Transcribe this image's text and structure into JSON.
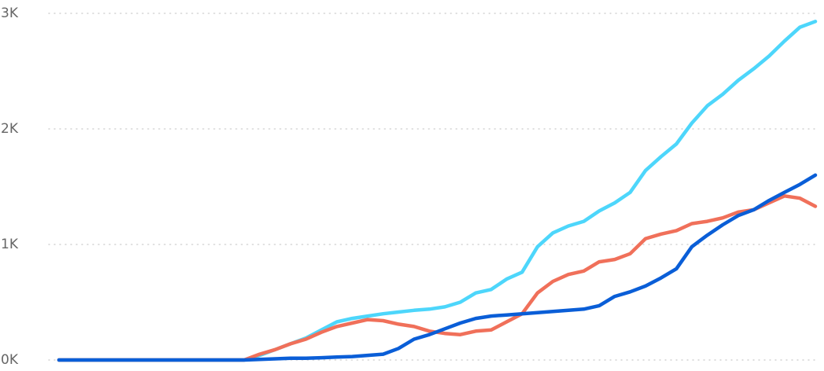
{
  "chart_data": {
    "type": "line",
    "categories": [
      null,
      null,
      null,
      null,
      null,
      null,
      null,
      null,
      null,
      null,
      null,
      null,
      null,
      null,
      null,
      null,
      null,
      null,
      null,
      null,
      null,
      null,
      null,
      null,
      null,
      null,
      null,
      null,
      null,
      null,
      null,
      null,
      null,
      null,
      null,
      null,
      null,
      null,
      null,
      null,
      null,
      null,
      null,
      null,
      null,
      null,
      null,
      null,
      null,
      null
    ],
    "series": [
      {
        "color": "#4dd6fb",
        "values": [
          0,
          0,
          0,
          0,
          0,
          0,
          0,
          0,
          0,
          0,
          0,
          0,
          0,
          40,
          90,
          140,
          190,
          260,
          330,
          360,
          380,
          400,
          415,
          430,
          440,
          460,
          500,
          580,
          610,
          700,
          760,
          980,
          1100,
          1160,
          1200,
          1290,
          1360,
          1450,
          1640,
          1760,
          1870,
          2050,
          2200,
          2300,
          2420,
          2520,
          2630,
          2760,
          2880,
          2930
        ]
      },
      {
        "color": "#f0705a",
        "values": [
          0,
          0,
          0,
          0,
          0,
          0,
          0,
          0,
          0,
          0,
          0,
          0,
          0,
          50,
          90,
          140,
          180,
          240,
          290,
          320,
          350,
          340,
          310,
          290,
          250,
          230,
          220,
          250,
          260,
          330,
          400,
          580,
          680,
          740,
          770,
          850,
          870,
          920,
          1050,
          1090,
          1120,
          1180,
          1200,
          1230,
          1280,
          1300,
          1360,
          1420,
          1400,
          1330
        ]
      },
      {
        "color": "#0a5ed7",
        "values": [
          0,
          0,
          0,
          0,
          0,
          0,
          0,
          0,
          0,
          0,
          0,
          0,
          0,
          5,
          10,
          15,
          15,
          20,
          25,
          30,
          40,
          50,
          100,
          180,
          220,
          270,
          320,
          360,
          380,
          390,
          400,
          410,
          420,
          430,
          440,
          470,
          550,
          590,
          640,
          710,
          790,
          980,
          1080,
          1170,
          1250,
          1300,
          1380,
          1450,
          1520,
          1600
        ]
      }
    ],
    "ylim": [
      0,
      3000
    ],
    "yticks": [
      {
        "value": 0,
        "label": "0K"
      },
      {
        "value": 1000,
        "label": "1K"
      },
      {
        "value": 2000,
        "label": "2K"
      },
      {
        "value": 3000,
        "label": "3K"
      }
    ],
    "grid": true
  }
}
